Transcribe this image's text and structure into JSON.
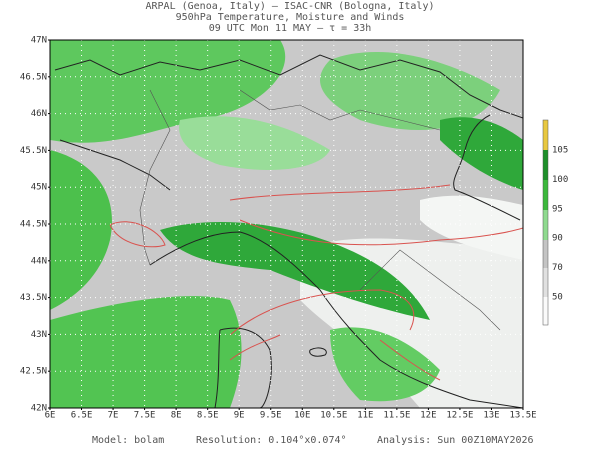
{
  "header": {
    "lines": [
      "ARPAL (Genoa, Italy)  –  ISAC-CNR (Bologna, Italy)",
      "950hPa Temperature, Moisture and Winds",
      "09 UTC Mon 11 MAY  –  τ = 33h"
    ]
  },
  "axes": {
    "lat_labels": [
      "47N",
      "46.5N",
      "46N",
      "45.5N",
      "45N",
      "44.5N",
      "44N",
      "43.5N",
      "43N",
      "42.5N",
      "42N"
    ],
    "lon_labels": [
      "6E",
      "6.5E",
      "7E",
      "7.5E",
      "8E",
      "8.5E",
      "9E",
      "9.5E",
      "10E",
      "10.5E",
      "11E",
      "11.5E",
      "12E",
      "12.5E",
      "13E",
      "13.5E"
    ]
  },
  "colorbar": {
    "labels": [
      "105",
      "100",
      "95",
      "90",
      "70",
      "50"
    ]
  },
  "footer": {
    "items": [
      "Model:  bolam",
      "Resolution:  0.104°x0.074°",
      "Analysis:  Sun  00Z10MAY2026"
    ]
  }
}
